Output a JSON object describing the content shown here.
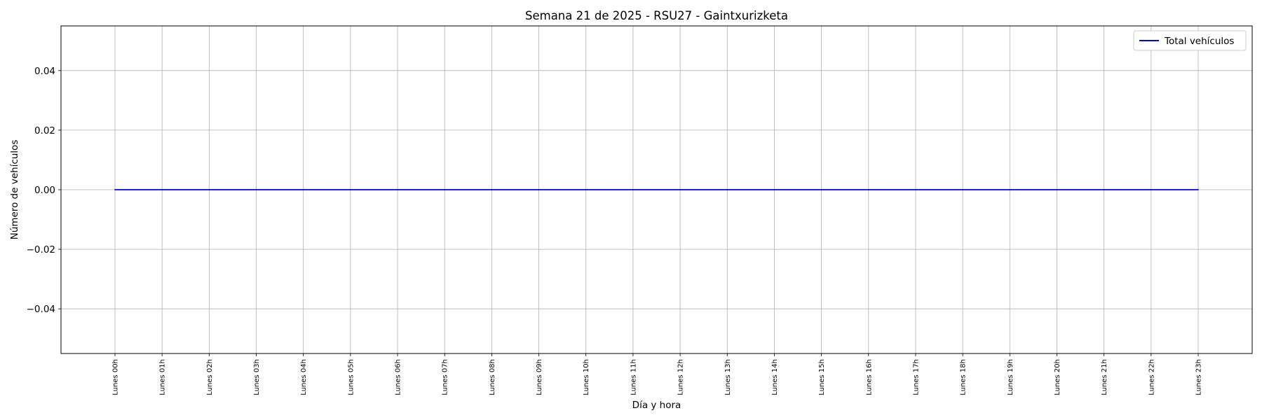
{
  "chart_data": {
    "type": "line",
    "title": "Semana 21 de 2025 - RSU27 - Gaintxurizketa",
    "xlabel": "Día y hora",
    "ylabel": "Número de vehículos",
    "categories": [
      "Lunes 00h",
      "Lunes 01h",
      "Lunes 02h",
      "Lunes 03h",
      "Lunes 04h",
      "Lunes 05h",
      "Lunes 06h",
      "Lunes 07h",
      "Lunes 08h",
      "Lunes 09h",
      "Lunes 10h",
      "Lunes 11h",
      "Lunes 12h",
      "Lunes 13h",
      "Lunes 14h",
      "Lunes 15h",
      "Lunes 16h",
      "Lunes 17h",
      "Lunes 18h",
      "Lunes 19h",
      "Lunes 20h",
      "Lunes 21h",
      "Lunes 22h",
      "Lunes 23h"
    ],
    "series": [
      {
        "name": "Total vehículos",
        "color": "#0000ff",
        "values": [
          0,
          0,
          0,
          0,
          0,
          0,
          0,
          0,
          0,
          0,
          0,
          0,
          0,
          0,
          0,
          0,
          0,
          0,
          0,
          0,
          0,
          0,
          0,
          0
        ]
      }
    ],
    "ylim": [
      -0.055,
      0.055
    ],
    "yticks": [
      -0.04,
      -0.02,
      0.0,
      0.02,
      0.04
    ],
    "ytick_labels": [
      "−0.04",
      "−0.02",
      "0.00",
      "0.02",
      "0.04"
    ],
    "grid": true,
    "legend": "top-right"
  }
}
